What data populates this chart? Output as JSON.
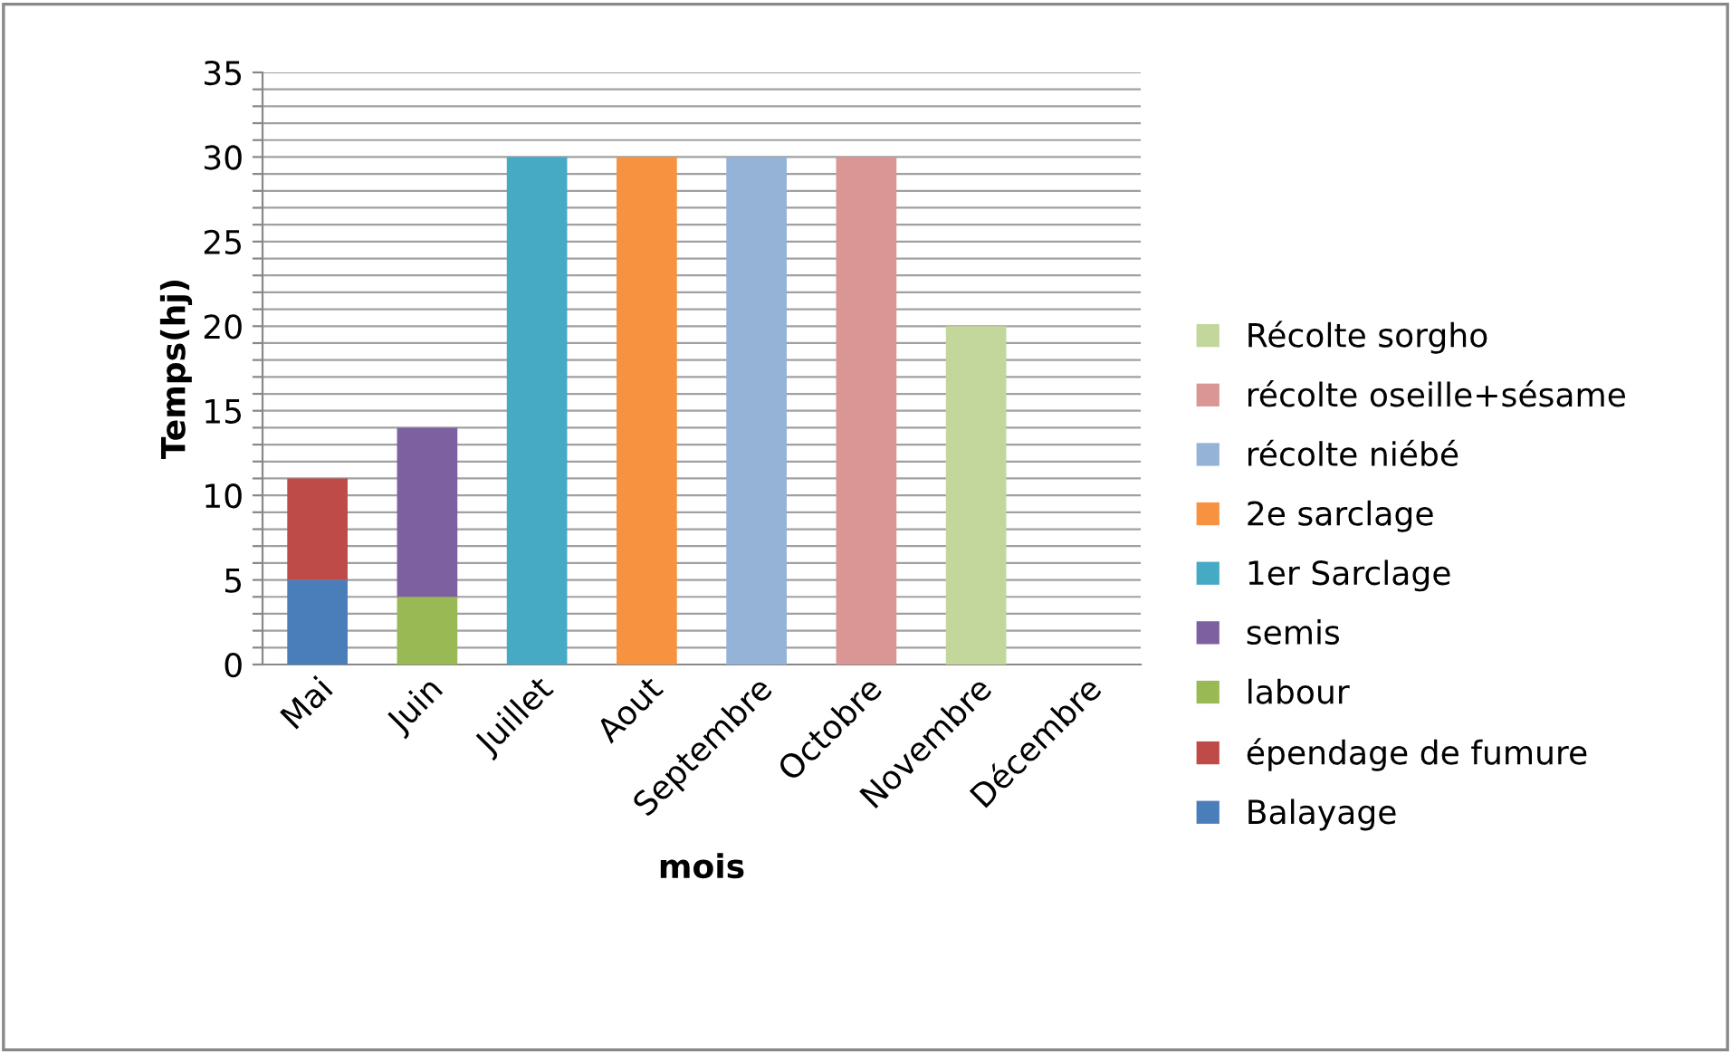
{
  "chart_data": {
    "type": "bar",
    "stacked": true,
    "xlabel": "mois",
    "ylabel": "Temps(hj)",
    "categories": [
      "Mai",
      "Juin",
      "Juillet",
      "Aout",
      "Septembre",
      "Octobre",
      "Novembre",
      "Décembre"
    ],
    "series": [
      {
        "name": "Balayage",
        "color": "#4a7ebb",
        "values": [
          5,
          null,
          null,
          null,
          null,
          null,
          null,
          null
        ]
      },
      {
        "name": "épendage de fumure",
        "color": "#be4b48",
        "values": [
          6,
          null,
          null,
          null,
          null,
          null,
          null,
          null
        ]
      },
      {
        "name": "labour",
        "color": "#98b954",
        "values": [
          null,
          4,
          null,
          null,
          null,
          null,
          null,
          null
        ]
      },
      {
        "name": "semis",
        "color": "#7d60a0",
        "values": [
          null,
          10,
          null,
          null,
          null,
          null,
          null,
          null
        ]
      },
      {
        "name": "1er Sarclage",
        "color": "#46aac5",
        "values": [
          null,
          null,
          30,
          null,
          null,
          null,
          null,
          null
        ]
      },
      {
        "name": "2e sarclage",
        "color": "#f69240",
        "values": [
          null,
          null,
          null,
          30,
          null,
          null,
          null,
          null
        ]
      },
      {
        "name": "récolte niébé",
        "color": "#95b3d7",
        "values": [
          null,
          null,
          null,
          null,
          30,
          null,
          null,
          null
        ]
      },
      {
        "name": "récolte oseille+sésame",
        "color": "#d99694",
        "values": [
          null,
          null,
          null,
          null,
          null,
          30,
          null,
          null
        ]
      },
      {
        "name": "Récolte sorgho",
        "color": "#c3d69b",
        "values": [
          null,
          null,
          null,
          null,
          null,
          null,
          20,
          null
        ]
      }
    ],
    "ylim": [
      0,
      35
    ],
    "yticks": [
      0,
      {
        "value": 1,
        "label": null
      },
      {
        "value": 2,
        "label": null
      },
      {
        "value": 3,
        "label": null
      },
      {
        "value": 4,
        "label": null
      },
      5,
      {
        "value": 6,
        "label": null
      },
      {
        "value": 7,
        "label": null
      },
      {
        "value": 8,
        "label": null
      },
      {
        "value": 9,
        "label": null
      },
      10,
      {
        "value": 11,
        "label": null
      },
      {
        "value": 12,
        "label": null
      },
      {
        "value": 13,
        "label": null
      },
      {
        "value": 14,
        "label": null
      },
      15,
      {
        "value": 16,
        "label": null
      },
      {
        "value": 17,
        "label": null
      },
      {
        "value": 18,
        "label": null
      },
      {
        "value": 19,
        "label": null
      },
      20,
      {
        "value": 21,
        "label": null
      },
      {
        "value": 22,
        "label": null
      },
      {
        "value": 23,
        "label": null
      },
      {
        "value": 24,
        "label": null
      },
      25,
      {
        "value": 26,
        "label": null
      },
      {
        "value": 27,
        "label": null
      },
      {
        "value": 28,
        "label": null
      },
      {
        "value": 29,
        "label": null
      },
      30,
      {
        "value": 31,
        "label": null
      },
      {
        "value": 32,
        "label": null
      },
      {
        "value": 33,
        "label": null
      },
      {
        "value": 34,
        "label": null
      },
      35
    ],
    "grid": "y",
    "legend": "right"
  }
}
